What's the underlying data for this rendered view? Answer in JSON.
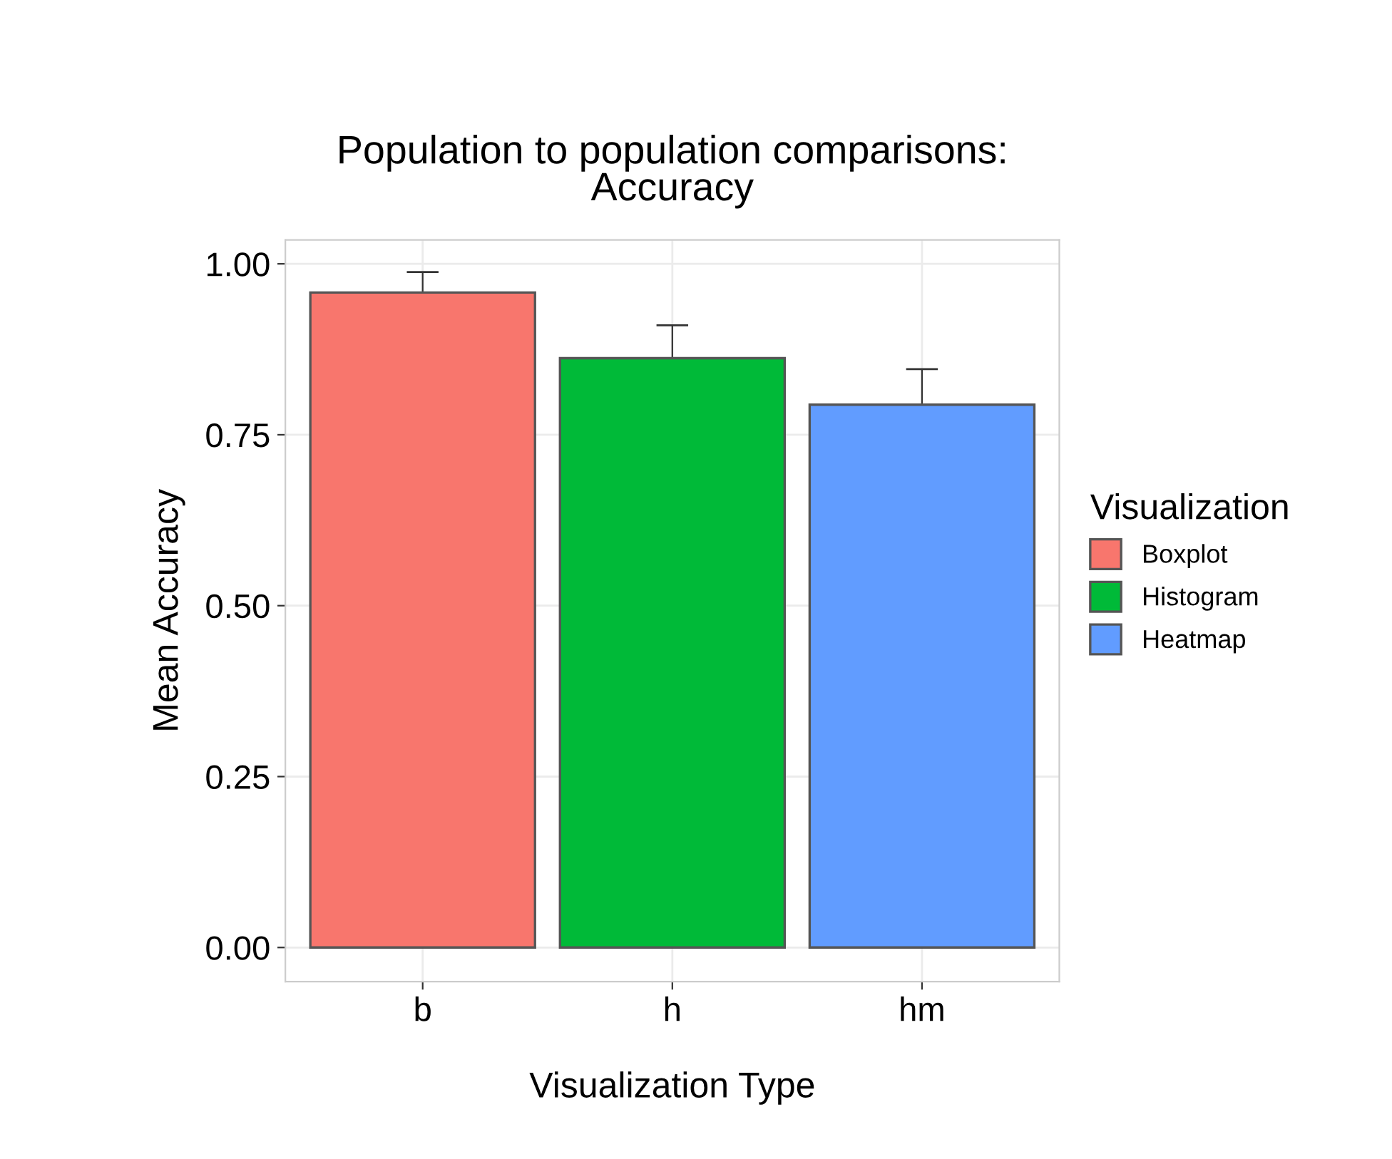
{
  "chart_data": {
    "type": "bar",
    "title": "Population to population comparisons:\nAccuracy",
    "xlabel": "Visualization Type",
    "ylabel": "Mean Accuracy",
    "legend_title": "Visualization",
    "categories": [
      "b",
      "h",
      "hm"
    ],
    "series": [
      {
        "name": "Boxplot",
        "color": "#f8766d",
        "values": [
          0.958,
          null,
          null
        ],
        "errors": [
          0.03,
          null,
          null
        ]
      },
      {
        "name": "Histogram",
        "color": "#00ba38",
        "values": [
          null,
          0.862,
          null
        ],
        "errors": [
          null,
          0.048,
          null
        ]
      },
      {
        "name": "Heatmap",
        "color": "#619cff",
        "values": [
          null,
          null,
          0.794
        ],
        "errors": [
          null,
          null,
          0.052
        ]
      }
    ],
    "ylim": [
      -0.05,
      1.035
    ],
    "yticks": [
      {
        "value": 0,
        "label": "0.00"
      },
      {
        "value": 0.25,
        "label": "0.25"
      },
      {
        "value": 0.5,
        "label": "0.50"
      },
      {
        "value": 0.75,
        "label": "0.75"
      },
      {
        "value": 1,
        "label": "1.00"
      }
    ],
    "grid": true,
    "legend": "right"
  }
}
